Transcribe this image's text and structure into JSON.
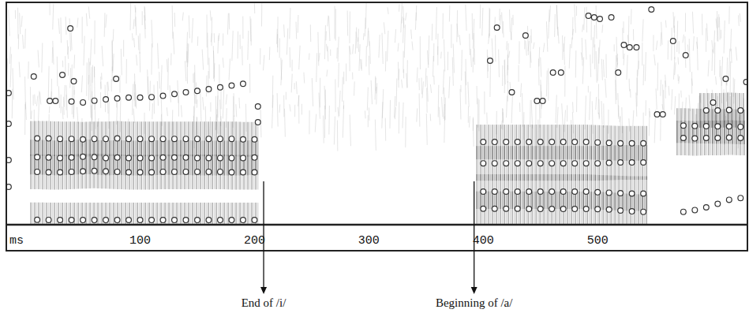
{
  "chart_data": {
    "type": "scatter",
    "x_label": "ms",
    "xlim": [
      -17,
      631
    ],
    "xticks": [
      100,
      200,
      300,
      400,
      500
    ],
    "ylim": [
      0,
      5000
    ],
    "tick_labels": "x",
    "grid": false,
    "annotations": [
      {
        "text": "End of /i/",
        "x": 208
      },
      {
        "text": "Beginning of /a/",
        "x": 392
      }
    ],
    "series": [
      {
        "type": "formant",
        "marker": "circle",
        "color": "#333333",
        "x": [
          10,
          20,
          30,
          40,
          50,
          60,
          70,
          80,
          90,
          100,
          110,
          120,
          130,
          140,
          150,
          160,
          170,
          180,
          190,
          200
        ],
        "values": [
          110,
          108,
          106,
          105,
          105,
          105,
          105,
          105,
          106,
          106,
          105,
          105,
          105,
          105,
          105,
          105,
          105,
          105,
          105,
          105
        ]
      },
      {
        "type": "formant",
        "marker": "circle",
        "color": "#333333",
        "x": [
          10,
          20,
          30,
          40,
          50,
          60,
          70,
          80,
          90,
          100,
          110,
          120,
          130,
          140,
          150,
          160,
          170,
          180,
          190,
          200
        ],
        "values": [
          1190,
          1180,
          1180,
          1190,
          1200,
          1210,
          1200,
          1190,
          1180,
          1180,
          1180,
          1190,
          1190,
          1190,
          1190,
          1190,
          1190,
          1180,
          1180,
          1180
        ]
      },
      {
        "type": "formant",
        "marker": "circle",
        "color": "#333333",
        "x": [
          10,
          20,
          30,
          40,
          50,
          60,
          70,
          80,
          90,
          100,
          110,
          120,
          130,
          140,
          150,
          160,
          170,
          180,
          190,
          200
        ],
        "values": [
          1520,
          1510,
          1500,
          1510,
          1530,
          1520,
          1500,
          1510,
          1500,
          1500,
          1500,
          1510,
          1510,
          1510,
          1500,
          1500,
          1500,
          1500,
          1500,
          1510
        ]
      },
      {
        "type": "formant",
        "marker": "circle",
        "color": "#333333",
        "x": [
          10,
          20,
          30,
          40,
          50,
          60,
          70,
          80,
          90,
          100,
          110,
          120,
          130,
          140,
          150,
          160,
          170,
          180,
          190,
          200
        ],
        "values": [
          1940,
          1940,
          1930,
          1930,
          1920,
          1930,
          1930,
          1940,
          1930,
          1930,
          1930,
          1930,
          1930,
          1930,
          1930,
          1930,
          1930,
          1930,
          1920,
          1920
        ]
      },
      {
        "type": "scatter",
        "marker": "circle",
        "color": "#333333",
        "x": [
          40,
          50,
          60,
          70,
          80,
          90,
          100,
          110,
          120,
          130,
          140,
          150,
          160,
          170,
          180,
          190
        ],
        "values": [
          2770,
          2750,
          2790,
          2820,
          2840,
          2860,
          2860,
          2870,
          2900,
          2940,
          2980,
          3010,
          3050,
          3090,
          3130,
          3170
        ]
      },
      {
        "type": "formant",
        "marker": "circle",
        "color": "#333333",
        "x": [
          400,
          410,
          420,
          430,
          440,
          450,
          460,
          470,
          480,
          490,
          500,
          510,
          520,
          530,
          540
        ],
        "values": [
          360,
          360,
          360,
          360,
          355,
          355,
          355,
          355,
          355,
          355,
          350,
          340,
          320,
          300,
          290
        ]
      },
      {
        "type": "formant",
        "marker": "circle",
        "color": "#333333",
        "x": [
          400,
          410,
          420,
          430,
          440,
          450,
          460,
          470,
          480,
          490,
          500,
          510,
          520,
          530,
          540
        ],
        "values": [
          745,
          745,
          745,
          745,
          745,
          745,
          745,
          745,
          745,
          745,
          730,
          720,
          710,
          700,
          700
        ]
      },
      {
        "type": "formant",
        "marker": "circle",
        "color": "#333333",
        "x": [
          400,
          410,
          420,
          430,
          440,
          450,
          460,
          470,
          480,
          490,
          500,
          510,
          520,
          530,
          540
        ],
        "values": [
          1380,
          1380,
          1380,
          1380,
          1380,
          1380,
          1380,
          1380,
          1380,
          1380,
          1380,
          1390,
          1400,
          1400,
          1400
        ]
      },
      {
        "type": "formant",
        "marker": "circle",
        "color": "#333333",
        "x": [
          400,
          410,
          420,
          430,
          440,
          450,
          460,
          470,
          480,
          490,
          500,
          510,
          520,
          530,
          540
        ],
        "values": [
          1860,
          1860,
          1860,
          1860,
          1860,
          1860,
          1860,
          1860,
          1860,
          1860,
          1850,
          1840,
          1830,
          1830,
          1830
        ]
      },
      {
        "type": "formant",
        "marker": "circle",
        "color": "#333333",
        "x": [
          575,
          585,
          595,
          605,
          615,
          625
        ],
        "values": [
          1950,
          1940,
          1950,
          1950,
          1960,
          1950
        ]
      },
      {
        "type": "formant",
        "marker": "circle",
        "color": "#333333",
        "x": [
          575,
          585,
          595,
          605,
          615,
          625
        ],
        "values": [
          2230,
          2220,
          2216,
          2210,
          2210,
          2200
        ]
      },
      {
        "type": "scatter",
        "marker": "circle",
        "color": "#333333",
        "x": [
          575,
          585,
          595,
          605,
          615,
          625
        ],
        "values": [
          290,
          330,
          390,
          470,
          560,
          600
        ]
      },
      {
        "type": "formant",
        "marker": "circle",
        "color": "#333333",
        "x": [
          595,
          605,
          615,
          625
        ],
        "values": [
          2570,
          2570,
          2580,
          2570
        ]
      },
      {
        "type": "scatter",
        "marker": "circle",
        "color": "#333333",
        "x": [
          -15,
          -15,
          -15,
          -15,
          7,
          21,
          26,
          32,
          39,
          42,
          79,
          203,
          203,
          406,
          412,
          425,
          437,
          447,
          452,
          461,
          468,
          492,
          497,
          502,
          512,
          518,
          523,
          528,
          534,
          547,
          552,
          557,
          566,
          577,
          601,
          612,
          630
        ],
        "values": [
          2961,
          2269,
          1454,
          851,
          3333,
          2784,
          2784,
          3369,
          4415,
          3227,
          3280,
          2660,
          2305,
          3688,
          4432,
          2979,
          4255,
          2784,
          2784,
          3422,
          3422,
          4698,
          4663,
          4627,
          4663,
          3422,
          4042,
          3989,
          3989,
          4840,
          2482,
          2482,
          4131,
          3812,
          2748,
          3280,
          3209
        ]
      }
    ]
  }
}
